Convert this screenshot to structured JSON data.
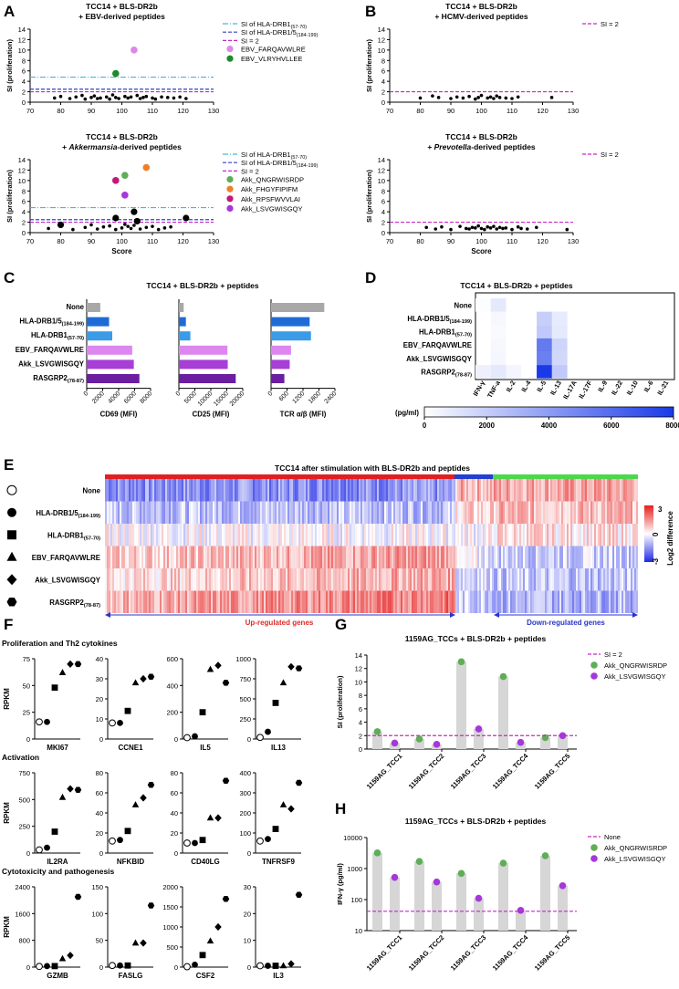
{
  "panels": {
    "A": {
      "letter": "A"
    },
    "B": {
      "letter": "B"
    },
    "C": {
      "letter": "C"
    },
    "D": {
      "letter": "D"
    },
    "E": {
      "letter": "E"
    },
    "F": {
      "letter": "F"
    },
    "G": {
      "letter": "G"
    },
    "H": {
      "letter": "H"
    }
  },
  "colors": {
    "ebv_pink": "#dd88e6",
    "ebv_green": "#1e8a2c",
    "akk_green": "#5fad56",
    "akk_orange": "#f07f2a",
    "akk_magenta": "#c2187a",
    "akk_purple": "#a637d9",
    "dashdot": "#4ab3e8",
    "dash_blue": "#3a3fc7",
    "dash_magenta": "#c627c6",
    "bar_grey": "#a8a8a8",
    "bar_blue1": "#1f6bd6",
    "bar_blue2": "#3c9be8",
    "bar_pink": "#de86ef",
    "bar_purple": "#a73fd6",
    "bar_dpurple": "#6b1ea0",
    "red_bar": "#e02020",
    "blue_bar": "#2340d0",
    "green_bar": "#4fd64f",
    "updown_red": "#e02a2a",
    "updown_blue": "#2a35c8"
  },
  "chart_data": [
    {
      "id": "A_top",
      "type": "scatter",
      "title": "TCC14 + BLS-DR2b",
      "subtitle": "+ EBV-derived peptides",
      "xlabel": "",
      "ylabel": "SI (proliferation)",
      "xlim": [
        70,
        130
      ],
      "ylim": [
        0,
        14
      ],
      "xticks": [
        70,
        80,
        90,
        100,
        110,
        120,
        130
      ],
      "yticks": [
        0,
        2,
        4,
        6,
        8,
        10,
        12,
        14
      ],
      "background_x": [
        78,
        80,
        83,
        85,
        87,
        88,
        90,
        91,
        92,
        93,
        95,
        96,
        97,
        98,
        99,
        101,
        102,
        103,
        105,
        106,
        107,
        108,
        110,
        111,
        113,
        115,
        117,
        119,
        121
      ],
      "background_y": [
        0.8,
        1.1,
        0.7,
        1.0,
        1.3,
        0.6,
        0.9,
        1.2,
        0.7,
        0.8,
        1.0,
        0.6,
        1.4,
        0.9,
        0.7,
        1.1,
        0.8,
        1.0,
        1.3,
        0.7,
        0.9,
        1.1,
        0.8,
        0.6,
        1.0,
        0.9,
        0.8,
        1.0,
        0.7
      ],
      "hlines": [
        {
          "label": "SI of HLA-DRB1",
          "sub": "(57-70)",
          "y": 4.8,
          "style": "dashdot",
          "color": "#4ab3e8"
        },
        {
          "label": "SI of HLA-DRB1/5",
          "sub": "(184-199)",
          "y": 2.5,
          "style": "dash",
          "color": "#3a3fc7"
        },
        {
          "label": "SI = 2",
          "sub": "",
          "y": 2.0,
          "style": "dash",
          "color": "#c627c6"
        }
      ],
      "highlights": [
        {
          "name": "EBV_FARQAVWLRE",
          "x": 104,
          "y": 10,
          "color": "#dd88e6"
        },
        {
          "name": "EBV_VLRYHVLLEE",
          "x": 98,
          "y": 5.5,
          "color": "#1e8a2c"
        }
      ]
    },
    {
      "id": "A_bottom",
      "type": "scatter",
      "title": "TCC14 + BLS-DR2b",
      "subtitle_pre": "+ ",
      "subtitle_it": "Akkermansia",
      "subtitle_post": "-derived peptides",
      "xlabel": "Score",
      "ylabel": "SI (proliferation)",
      "xlim": [
        70,
        130
      ],
      "ylim": [
        0,
        14
      ],
      "xticks": [
        70,
        80,
        90,
        100,
        110,
        120,
        130
      ],
      "yticks": [
        0,
        2,
        4,
        6,
        8,
        10,
        12,
        14
      ],
      "background_x": [
        76,
        80,
        84,
        88,
        90,
        92,
        94,
        96,
        98,
        100,
        101,
        102,
        103,
        104,
        106,
        108,
        110,
        112,
        114,
        116
      ],
      "background_y": [
        0.8,
        1.2,
        0.6,
        1.0,
        1.5,
        0.7,
        1.1,
        1.3,
        0.6,
        0.9,
        1.6,
        1.2,
        0.8,
        1.4,
        0.7,
        1.0,
        1.2,
        0.6,
        0.9,
        1.1
      ],
      "black_large_x": [
        80,
        98,
        104,
        105,
        121
      ],
      "black_large_y": [
        1.5,
        2.8,
        4.0,
        2.2,
        2.8
      ],
      "hlines": [
        {
          "label": "SI of HLA-DRB1",
          "sub": "(57-70)",
          "y": 4.8,
          "style": "dashdot",
          "color": "#4ab3e8"
        },
        {
          "label": "SI of HLA-DRB1/5",
          "sub": "(184-199)",
          "y": 2.5,
          "style": "dash",
          "color": "#3a3fc7"
        },
        {
          "label": "SI = 2",
          "sub": "",
          "y": 2.0,
          "style": "dash",
          "color": "#c627c6"
        }
      ],
      "highlights": [
        {
          "name": "Akk_QNGRWISRDP",
          "x": 101,
          "y": 11,
          "color": "#5fad56"
        },
        {
          "name": "Akk_FHGYFIPIFM",
          "x": 108,
          "y": 12.5,
          "color": "#f07f2a"
        },
        {
          "name": "Akk_RPSFWVVLAI",
          "x": 98,
          "y": 10,
          "color": "#c2187a"
        },
        {
          "name": "Akk_LSVGWISGQY",
          "x": 101,
          "y": 7.2,
          "color": "#a637d9"
        }
      ]
    },
    {
      "id": "B_top",
      "type": "scatter",
      "title": "TCC14 + BLS-DR2b",
      "subtitle": "+ HCMV-derived peptides",
      "xlabel": "",
      "ylabel": "SI (proliferation)",
      "xlim": [
        70,
        130
      ],
      "ylim": [
        0,
        14
      ],
      "xticks": [
        70,
        80,
        90,
        100,
        110,
        120,
        130
      ],
      "yticks": [
        0,
        2,
        4,
        6,
        8,
        10,
        12,
        14
      ],
      "background_x": [
        80,
        84,
        86,
        90,
        92,
        94,
        96,
        98,
        99,
        100,
        102,
        103,
        104,
        105,
        106,
        108,
        110,
        112,
        123
      ],
      "background_y": [
        0.8,
        1.2,
        0.9,
        0.7,
        1.0,
        0.8,
        1.1,
        0.6,
        0.9,
        1.3,
        0.8,
        1.0,
        0.7,
        1.2,
        0.9,
        0.8,
        0.7,
        1.0,
        0.9
      ],
      "hlines": [
        {
          "label": "SI = 2",
          "sub": "",
          "y": 2.0,
          "style": "dash",
          "color": "#c627c6"
        }
      ],
      "highlights": []
    },
    {
      "id": "B_bottom",
      "type": "scatter",
      "title": "TCC14 + BLS-DR2b",
      "subtitle_pre": "+ ",
      "subtitle_it": "Prevotella",
      "subtitle_post": "-derived peptides",
      "xlabel": "Score",
      "ylabel": "SI (proliferation)",
      "xlim": [
        70,
        130
      ],
      "ylim": [
        0,
        14
      ],
      "xticks": [
        70,
        80,
        90,
        100,
        110,
        120,
        130
      ],
      "yticks": [
        0,
        2,
        4,
        6,
        8,
        10,
        12,
        14
      ],
      "background_x": [
        82,
        85,
        87,
        90,
        93,
        95,
        96,
        97,
        98,
        99,
        100,
        101,
        102,
        103,
        104,
        105,
        106,
        107,
        108,
        110,
        112,
        113,
        115,
        118,
        128
      ],
      "background_y": [
        1.0,
        0.7,
        1.1,
        0.6,
        1.2,
        0.8,
        0.7,
        1.0,
        0.9,
        1.3,
        0.8,
        0.6,
        1.1,
        0.9,
        1.2,
        0.7,
        1.0,
        0.8,
        0.9,
        0.6,
        1.1,
        0.8,
        0.7,
        1.0,
        0.6
      ],
      "hlines": [
        {
          "label": "SI = 2",
          "sub": "",
          "y": 2.0,
          "style": "dash",
          "color": "#c627c6"
        }
      ],
      "highlights": []
    },
    {
      "id": "C",
      "type": "bar",
      "title": "TCC14 + BLS-DR2b + peptides",
      "categories": [
        "None",
        "HLA-DRB1/5",
        "HLA-DRB1",
        "EBV_FARQAVWLRE",
        "Akk_LSVGWISGQY",
        "RASGRP2"
      ],
      "category_subs": [
        "",
        "(184-199)",
        "(57-70)",
        "",
        "",
        "(78-87)"
      ],
      "bar_colors": [
        "#a8a8a8",
        "#1f6bd6",
        "#3c9be8",
        "#de86ef",
        "#a73fd6",
        "#6b1ea0"
      ],
      "series": [
        {
          "name": "CD69 (MFI)",
          "values": [
            1700,
            2800,
            3200,
            5700,
            5900,
            6600
          ],
          "xlim": [
            0,
            8000
          ],
          "xticks": [
            0,
            2000,
            4000,
            6000,
            8000
          ]
        },
        {
          "name": "CD25 (MFI)",
          "values": [
            1500,
            2200,
            3600,
            15200,
            15300,
            17800
          ],
          "xlim": [
            0,
            20000
          ],
          "xticks": [
            0,
            5000,
            10000,
            15000,
            20000
          ]
        },
        {
          "name": "TCR α/β (MFI)",
          "values": [
            2000,
            1450,
            1500,
            750,
            700,
            500
          ],
          "xlim": [
            0,
            2400
          ],
          "xticks": [
            0,
            600,
            1200,
            1800,
            2400
          ]
        }
      ]
    },
    {
      "id": "D",
      "type": "heatmap",
      "title": "TCC14 + BLS-DR2b + peptides",
      "rows": [
        "None",
        "HLA-DRB1/5",
        "HLA-DRB1",
        "EBV_FARQAVWLRE",
        "Akk_LSVGWISGQY",
        "RASGRP2"
      ],
      "row_subs": [
        "",
        "(184-199)",
        "(57-70)",
        "",
        "",
        "(78-87)"
      ],
      "cols": [
        "IFN-γ",
        "TNF-a",
        "IL-2",
        "IL-4",
        "IL-5",
        "IL-13",
        "IL-17A",
        "IL-17F",
        "IL-9",
        "IL-22",
        "IL-10",
        "IL-6",
        "IL-21"
      ],
      "values": [
        [
          100,
          900,
          0,
          0,
          0,
          0,
          0,
          0,
          0,
          0,
          0,
          0,
          0
        ],
        [
          0,
          300,
          0,
          0,
          2000,
          800,
          0,
          0,
          0,
          0,
          0,
          0,
          0
        ],
        [
          0,
          200,
          0,
          0,
          2200,
          900,
          0,
          0,
          0,
          0,
          0,
          0,
          0
        ],
        [
          0,
          300,
          0,
          0,
          5400,
          1700,
          0,
          0,
          0,
          0,
          0,
          0,
          0
        ],
        [
          0,
          350,
          0,
          0,
          5200,
          1600,
          0,
          0,
          0,
          0,
          0,
          0,
          0
        ],
        [
          600,
          900,
          400,
          0,
          8000,
          2200,
          0,
          0,
          0,
          0,
          0,
          0,
          0
        ]
      ],
      "colorbar_label": "(pg/ml)",
      "colorbar_ticks": [
        0,
        2000,
        4000,
        6000,
        8000
      ],
      "range": [
        0,
        8000
      ]
    },
    {
      "id": "E",
      "type": "heatmap",
      "title": "TCC14 after stimulation with BLS-DR2b and peptides",
      "rows": [
        "None",
        "HLA-DRB1/5",
        "HLA-DRB1",
        "EBV_FARQAVWLRE",
        "Akk_LSVGWISGQY",
        "RASGRP2"
      ],
      "row_subs": [
        "",
        "(184-199)",
        "(57-70)",
        "",
        "",
        "(78-87)"
      ],
      "row_markers": [
        "open-circle",
        "circle",
        "square",
        "triangle",
        "diamond",
        "hexagon"
      ],
      "colorbar_label": "Log2 difference",
      "colorbar_ticks": [
        3,
        0,
        -3
      ],
      "group_labels": [
        "Up-regulated genes",
        "Down-regulated genes"
      ],
      "row_means_up": [
        -1.5,
        -0.8,
        0.0,
        0.9,
        0.7,
        1.3
      ],
      "row_means_mid": [
        1.0,
        0.5,
        0.0,
        -0.3,
        -0.4,
        -0.6
      ],
      "row_means_down": [
        1.2,
        0.9,
        0.4,
        -0.6,
        -0.8,
        -1.0
      ]
    },
    {
      "id": "F",
      "type": "scatter",
      "sections": [
        "Proliferation and Th2 cytokines",
        "Activation",
        "Cytotoxicity and pathogenesis"
      ],
      "ylabel": "RPKM",
      "markers": [
        "open-circle",
        "circle",
        "square",
        "triangle",
        "diamond",
        "hexagon"
      ],
      "genes": [
        {
          "name": "MKI67",
          "yticks": [
            0,
            25,
            50,
            75
          ],
          "ymax": 75,
          "values": [
            16,
            16,
            48,
            62,
            70,
            70
          ]
        },
        {
          "name": "CCNE1",
          "yticks": [
            0,
            10,
            20,
            30,
            40
          ],
          "ymax": 40,
          "values": [
            8,
            8,
            14,
            28,
            30,
            31
          ]
        },
        {
          "name": "IL5",
          "yticks": [
            0,
            200,
            400,
            600
          ],
          "ymax": 600,
          "values": [
            10,
            20,
            200,
            520,
            550,
            420
          ]
        },
        {
          "name": "IL13",
          "yticks": [
            0,
            250,
            500,
            750,
            1000
          ],
          "ymax": 1000,
          "values": [
            20,
            90,
            450,
            700,
            900,
            880
          ]
        },
        {
          "name": "IL2RA",
          "yticks": [
            0,
            250,
            500,
            750
          ],
          "ymax": 750,
          "values": [
            30,
            50,
            200,
            520,
            600,
            590
          ]
        },
        {
          "name": "NFKBID",
          "yticks": [
            0,
            20,
            40,
            60,
            80
          ],
          "ymax": 80,
          "values": [
            12,
            13,
            22,
            48,
            55,
            68
          ]
        },
        {
          "name": "CD40LG",
          "yticks": [
            0,
            20,
            40,
            60,
            80
          ],
          "ymax": 80,
          "values": [
            10,
            10,
            13,
            35,
            35,
            72
          ]
        },
        {
          "name": "TNFRSF9",
          "yticks": [
            0,
            100,
            200,
            300,
            400
          ],
          "ymax": 400,
          "values": [
            60,
            70,
            120,
            240,
            220,
            350
          ]
        },
        {
          "name": "GZMB",
          "yticks": [
            0,
            800,
            1600,
            2400
          ],
          "ymax": 2400,
          "values": [
            20,
            30,
            30,
            250,
            350,
            2100
          ]
        },
        {
          "name": "FASLG",
          "yticks": [
            0,
            50,
            100,
            150
          ],
          "ymax": 150,
          "values": [
            3,
            3,
            3,
            45,
            45,
            115
          ]
        },
        {
          "name": "CSF2",
          "yticks": [
            0,
            500,
            1000,
            1500,
            2000
          ],
          "ymax": 2000,
          "values": [
            10,
            60,
            300,
            650,
            1000,
            1700
          ]
        },
        {
          "name": "IL3",
          "yticks": [
            0,
            10,
            20,
            30
          ],
          "ymax": 30,
          "values": [
            0.5,
            0.5,
            0.5,
            0.5,
            1.2,
            27
          ]
        }
      ]
    },
    {
      "id": "G",
      "type": "bar",
      "title": "1159AG_TCCs + BLS-DR2b + peptides",
      "ylabel": "SI (proliferation)",
      "ylim": [
        0,
        14
      ],
      "yticks": [
        0,
        2,
        4,
        6,
        8,
        10,
        12,
        14
      ],
      "categories": [
        "1159AG_TCC1",
        "1159AG_TCC2",
        "1159AG_TCC3",
        "1159AG_TCC4",
        "1159AG_TCC5"
      ],
      "series": [
        {
          "name": "Akk_QNGRWISRDP",
          "values": [
            2.6,
            1.5,
            13.0,
            10.8,
            1.7
          ],
          "color": "#5fad56"
        },
        {
          "name": "Akk_LSVGWISGQY",
          "values": [
            0.9,
            0.7,
            3.0,
            1.0,
            2.0
          ],
          "color": "#a637d9"
        }
      ],
      "hline": {
        "label": "SI = 2",
        "y": 2.0,
        "color": "#c627c6"
      }
    },
    {
      "id": "H",
      "type": "bar",
      "title": "1159AG_TCCs + BLS-DR2b + peptides",
      "ylabel": "IFN-γ (pg/ml)",
      "yscale": "log",
      "ylim": [
        10,
        10000
      ],
      "yticks": [
        10,
        100,
        1000,
        10000
      ],
      "categories": [
        "1159AG_TCC1",
        "1159AG_TCC2",
        "1159AG_TCC3",
        "1159AG_TCC4",
        "1159AG_TCC5"
      ],
      "series": [
        {
          "name": "Akk_QNGRWISRDP",
          "values": [
            3200,
            1700,
            700,
            1500,
            2600
          ],
          "color": "#5fad56"
        },
        {
          "name": "Akk_LSVGWISGQY",
          "values": [
            520,
            370,
            110,
            45,
            280
          ],
          "color": "#a637d9"
        }
      ],
      "hline": {
        "label": "None",
        "y": 42,
        "color": "#c627c6"
      }
    }
  ]
}
